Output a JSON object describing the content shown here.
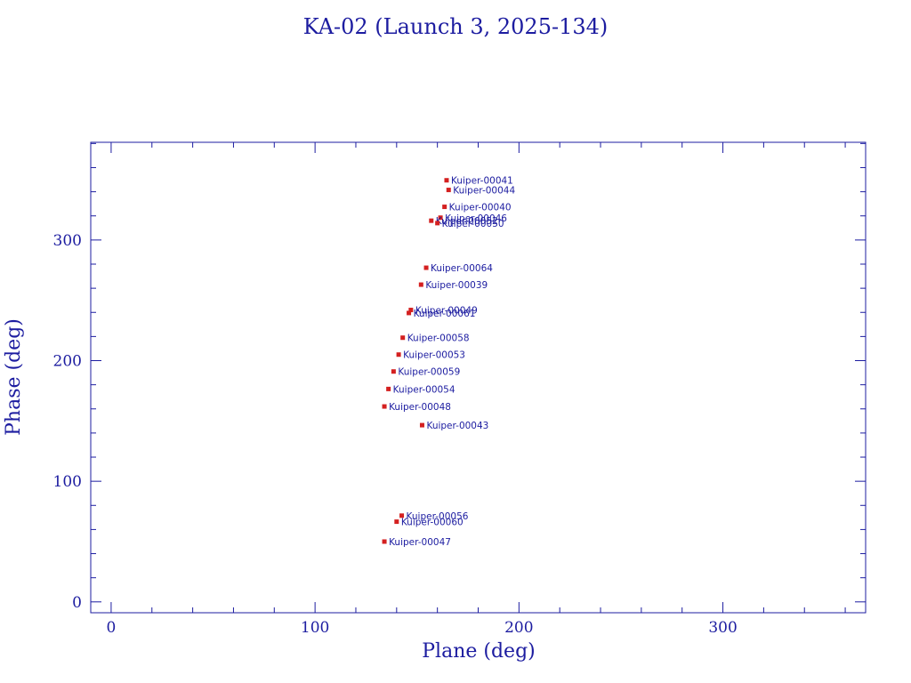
{
  "chart_data": {
    "type": "scatter",
    "title": "KA-02 (Launch 3, 2025-134)",
    "xlabel": "Plane (deg)",
    "ylabel": "Phase (deg)",
    "xlim": [
      -10,
      370
    ],
    "ylim": [
      -9,
      381
    ],
    "x_ticks": [
      0,
      100,
      200,
      300
    ],
    "y_ticks": [
      0,
      100,
      200,
      300
    ],
    "x_tick_labels": [
      "0",
      "100",
      "200",
      "300"
    ],
    "y_tick_labels": [
      "0",
      "100",
      "200",
      "300"
    ],
    "grid": false,
    "marker_color": "#d42020",
    "label_color": "#1c1ca0",
    "axis_color": "#1c1ca0",
    "points": [
      {
        "label": "Kuiper-00041",
        "x": 164.5,
        "y": 349.5
      },
      {
        "label": "Kuiper-00044",
        "x": 165.5,
        "y": 341.5
      },
      {
        "label": "Kuiper-00040",
        "x": 163.5,
        "y": 327.5
      },
      {
        "label": "Kuiper-00046",
        "x": 161.5,
        "y": 318.5
      },
      {
        "label": "Kuiper-00052",
        "x": 157.0,
        "y": 316.0
      },
      {
        "label": "Kuiper-00050",
        "x": 160.0,
        "y": 314.0
      },
      {
        "label": "Kuiper-00064",
        "x": 154.5,
        "y": 277.0
      },
      {
        "label": "Kuiper-00039",
        "x": 152.0,
        "y": 263.0
      },
      {
        "label": "Kuiper-00049",
        "x": 147.0,
        "y": 242.0
      },
      {
        "label": "Kuiper-00061",
        "x": 146.0,
        "y": 239.5
      },
      {
        "label": "Kuiper-00058",
        "x": 143.0,
        "y": 219.0
      },
      {
        "label": "Kuiper-00053",
        "x": 141.0,
        "y": 205.0
      },
      {
        "label": "Kuiper-00059",
        "x": 138.5,
        "y": 191.0
      },
      {
        "label": "Kuiper-00054",
        "x": 136.0,
        "y": 176.5
      },
      {
        "label": "Kuiper-00048",
        "x": 134.0,
        "y": 162.0
      },
      {
        "label": "Kuiper-00043",
        "x": 152.5,
        "y": 146.5
      },
      {
        "label": "Kuiper-00056",
        "x": 142.5,
        "y": 71.5
      },
      {
        "label": "Kuiper-00060",
        "x": 140.0,
        "y": 66.5
      },
      {
        "label": "Kuiper-00047",
        "x": 134.0,
        "y": 50.0
      }
    ]
  }
}
